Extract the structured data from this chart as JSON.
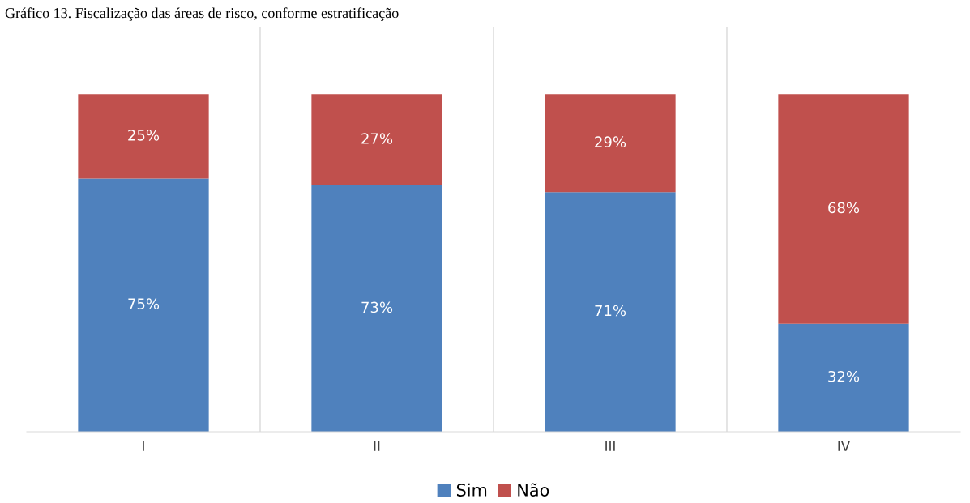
{
  "chart_data": {
    "type": "bar",
    "title": "Gráfico 13. Fiscalização das áreas de risco, conforme estratificação",
    "categories": [
      "I",
      "II",
      "III",
      "IV"
    ],
    "series": [
      {
        "name": "Sim",
        "color": "#4f81bd",
        "values": [
          75,
          73,
          71,
          32
        ],
        "value_labels": [
          "75%",
          "73%",
          "71%",
          "32%"
        ]
      },
      {
        "name": "Não",
        "color": "#c0504d",
        "values": [
          25,
          27,
          29,
          68
        ],
        "value_labels": [
          "25%",
          "27%",
          "29%",
          "68%"
        ]
      }
    ],
    "stacked": true,
    "tick_labels": "x",
    "grid": "x",
    "legend": "bottom"
  }
}
